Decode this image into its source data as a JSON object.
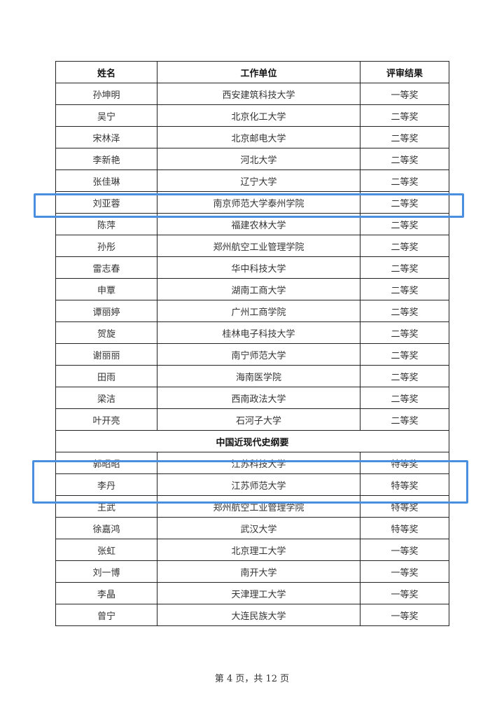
{
  "table": {
    "headers": [
      "姓名",
      "工作单位",
      "评审结果"
    ],
    "rows_group1": [
      [
        "孙坤明",
        "西安建筑科技大学",
        "一等奖"
      ],
      [
        "吴宁",
        "北京化工大学",
        "二等奖"
      ],
      [
        "宋林泽",
        "北京邮电大学",
        "二等奖"
      ],
      [
        "李新艳",
        "河北大学",
        "二等奖"
      ],
      [
        "张佳琳",
        "辽宁大学",
        "二等奖"
      ],
      [
        "刘亚蓉",
        "南京师范大学泰州学院",
        "二等奖"
      ],
      [
        "陈萍",
        "福建农林大学",
        "二等奖"
      ],
      [
        "孙彤",
        "郑州航空工业管理学院",
        "二等奖"
      ],
      [
        "雷志春",
        "华中科技大学",
        "二等奖"
      ],
      [
        "申覃",
        "湖南工商大学",
        "二等奖"
      ],
      [
        "谭丽婷",
        "广州工商学院",
        "二等奖"
      ],
      [
        "贺旋",
        "桂林电子科技大学",
        "二等奖"
      ],
      [
        "谢丽丽",
        "南宁师范大学",
        "二等奖"
      ],
      [
        "田雨",
        "海南医学院",
        "二等奖"
      ],
      [
        "梁洁",
        "西南政法大学",
        "二等奖"
      ],
      [
        "叶开亮",
        "石河子大学",
        "二等奖"
      ]
    ],
    "section_title": "中国近现代史纲要",
    "rows_group2": [
      [
        "郭昭昭",
        "江苏科技大学",
        "特等奖"
      ],
      [
        "李丹",
        "江苏师范大学",
        "特等奖"
      ],
      [
        "王武",
        "郑州航空工业管理学院",
        "特等奖"
      ],
      [
        "徐嘉鸿",
        "武汉大学",
        "特等奖"
      ],
      [
        "张虹",
        "北京理工大学",
        "一等奖"
      ],
      [
        "刘一博",
        "南开大学",
        "一等奖"
      ],
      [
        "李晶",
        "天津理工大学",
        "一等奖"
      ],
      [
        "曾宁",
        "大连民族大学",
        "一等奖"
      ]
    ]
  },
  "highlight_color": "#4a8ee0",
  "footer": {
    "page_label": "第 4 页，共 12 页"
  }
}
